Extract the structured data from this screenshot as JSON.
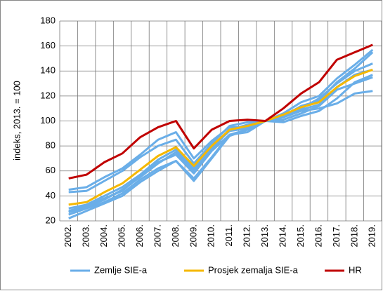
{
  "chart_data": {
    "type": "line",
    "y_label": "indeks, 2013. = 100",
    "categories": [
      "2002.",
      "2003.",
      "2004.",
      "2005.",
      "2006.",
      "2007.",
      "2008.",
      "2009.",
      "2010.",
      "2011.",
      "2012.",
      "2013.",
      "2014.",
      "2015.",
      "2016.",
      "2017.",
      "2018.",
      "2019."
    ],
    "series": [
      {
        "name": "Zemlje SIE-a",
        "color": "#6aaee8",
        "values": [
          [
            45,
            47,
            55,
            62,
            73,
            85,
            91,
            70,
            84,
            95,
            95,
            100,
            99,
            104,
            108,
            118,
            131,
            137
          ],
          [
            43,
            44,
            52,
            60,
            71,
            80,
            85,
            66,
            82,
            96,
            99,
            100,
            103,
            108,
            110,
            114,
            122,
            124
          ],
          [
            30,
            33,
            40,
            47,
            57,
            69,
            77,
            62,
            79,
            92,
            94,
            100,
            106,
            115,
            120,
            134,
            145,
            157
          ],
          [
            28,
            32,
            38,
            44,
            56,
            67,
            73,
            58,
            76,
            89,
            93,
            100,
            104,
            112,
            116,
            131,
            142,
            155
          ],
          [
            25,
            30,
            35,
            42,
            53,
            62,
            68,
            54,
            71,
            89,
            91,
            100,
            105,
            110,
            118,
            130,
            140,
            146
          ],
          [
            22,
            28,
            34,
            40,
            51,
            60,
            68,
            52,
            70,
            88,
            93,
            100,
            101,
            106,
            112,
            125,
            130,
            135
          ],
          [
            27,
            31,
            37,
            45,
            55,
            66,
            75,
            60,
            77,
            93,
            97,
            100,
            103,
            109,
            113,
            127,
            137,
            141
          ]
        ]
      },
      {
        "name": "Prosjek zemalja SIE-a",
        "color": "#f5b800",
        "values": [
          33,
          35,
          43,
          50,
          61,
          72,
          79,
          64,
          80,
          93,
          96,
          100,
          105,
          111,
          115,
          127,
          136,
          141
        ]
      },
      {
        "name": "HR",
        "color": "#c00000",
        "values": [
          54,
          57,
          67,
          74,
          87,
          95,
          100,
          78,
          93,
          100,
          101,
          100,
          110,
          122,
          131,
          149,
          155,
          161
        ]
      }
    ],
    "ylim": [
      20,
      180
    ],
    "yticks": [
      20,
      40,
      60,
      80,
      100,
      120,
      140,
      160,
      180
    ],
    "grid": true,
    "legend": "bottom"
  }
}
